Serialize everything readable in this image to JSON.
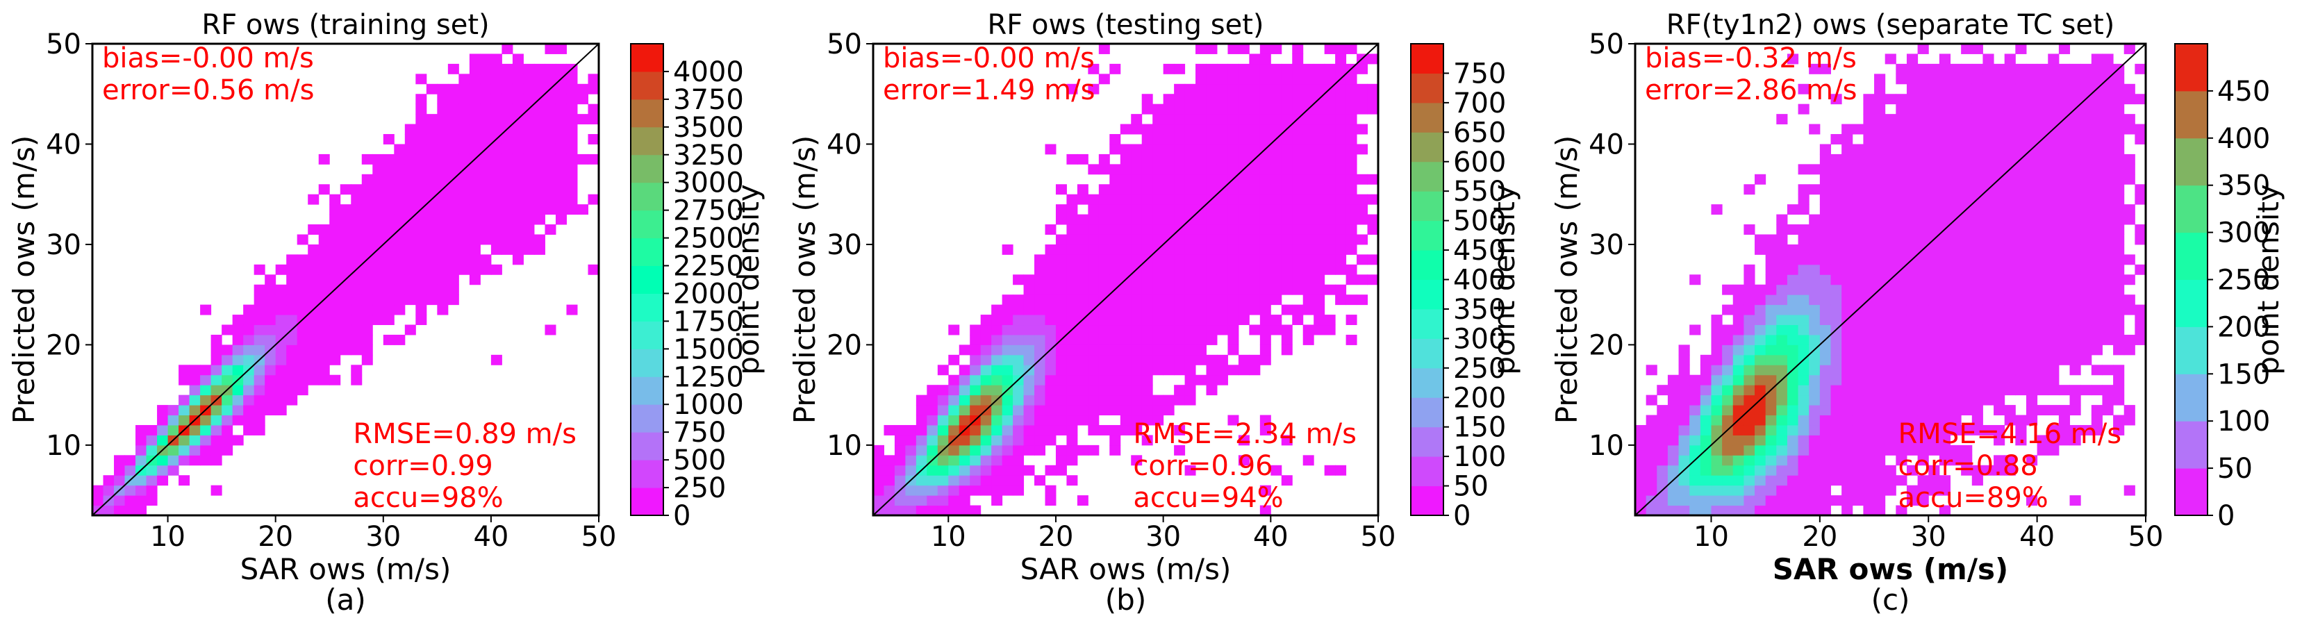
{
  "chart_data": [
    {
      "type": "heatmap",
      "panel": "(a)",
      "title": "RF ows (training set)",
      "xlabel": "SAR ows (m/s)",
      "ylabel": "Predicted ows (m/s)",
      "xlabel_bold": false,
      "xlim": [
        3,
        50
      ],
      "ylim": [
        3,
        50
      ],
      "xticks": [
        "10",
        "20",
        "30",
        "40",
        "50"
      ],
      "yticks": [
        "10",
        "20",
        "30",
        "40",
        "50"
      ],
      "stats_top": [
        "bias=-0.00 m/s",
        "error=0.56 m/s"
      ],
      "stats_bottom": [
        "RMSE=0.89 m/s",
        "corr=0.99",
        "accu=98%"
      ],
      "colorbar": {
        "label": "point density",
        "max": 4250,
        "ticks": [
          "0",
          "250",
          "500",
          "750",
          "1000",
          "1250",
          "1500",
          "1750",
          "2000",
          "2250",
          "2500",
          "2750",
          "3000",
          "3250",
          "3500",
          "3750",
          "4000"
        ],
        "tick_values": [
          0,
          250,
          500,
          750,
          1000,
          1250,
          1500,
          1750,
          2000,
          2250,
          2500,
          2750,
          3000,
          3250,
          3500,
          3750,
          4000
        ]
      },
      "density_model": {
        "spread_base": 0.55,
        "spread_slope": 0.085,
        "bias": 0.0,
        "peak_center": 12.5,
        "peak_width": 5.0,
        "peak_value": 4200,
        "tail_decay": 0.045,
        "extent": 3.4,
        "scatter_prob": 0.035
      }
    },
    {
      "type": "heatmap",
      "panel": "(b)",
      "title": "RF ows (testing set)",
      "xlabel": "SAR ows (m/s)",
      "ylabel": "Predicted ows (m/s)",
      "xlabel_bold": false,
      "xlim": [
        3,
        50
      ],
      "ylim": [
        3,
        50
      ],
      "xticks": [
        "10",
        "20",
        "30",
        "40",
        "50"
      ],
      "yticks": [
        "10",
        "20",
        "30",
        "40",
        "50"
      ],
      "stats_top": [
        "bias=-0.00 m/s",
        "error=1.49 m/s"
      ],
      "stats_bottom": [
        "RMSE=2.34 m/s",
        "corr=0.96",
        "accu=94%"
      ],
      "colorbar": {
        "label": "point density",
        "max": 800,
        "ticks": [
          "0",
          "50",
          "100",
          "150",
          "200",
          "250",
          "300",
          "350",
          "400",
          "450",
          "500",
          "550",
          "600",
          "650",
          "700",
          "750"
        ],
        "tick_values": [
          0,
          50,
          100,
          150,
          200,
          250,
          300,
          350,
          400,
          450,
          500,
          550,
          600,
          650,
          700,
          750
        ]
      },
      "density_model": {
        "spread_base": 1.2,
        "spread_slope": 0.14,
        "bias": 0.0,
        "peak_center": 12.0,
        "peak_width": 4.5,
        "peak_value": 780,
        "tail_decay": 0.04,
        "extent": 3.2,
        "scatter_prob": 0.06
      }
    },
    {
      "type": "heatmap",
      "panel": "(c)",
      "title": "RF(ty1n2) ows (separate TC set)",
      "xlabel": "SAR ows (m/s)",
      "ylabel": "Predicted ows (m/s)",
      "xlabel_bold": true,
      "xlim": [
        3,
        50
      ],
      "ylim": [
        3,
        50
      ],
      "xticks": [
        "10",
        "20",
        "30",
        "40",
        "50"
      ],
      "yticks": [
        "10",
        "20",
        "30",
        "40",
        "50"
      ],
      "stats_top": [
        "bias=-0.32 m/s",
        "error=2.86 m/s"
      ],
      "stats_bottom": [
        "RMSE=4.16 m/s",
        "corr=0.88",
        "accu=89%"
      ],
      "colorbar": {
        "label": "point density",
        "max": 500,
        "ticks": [
          "0",
          "50",
          "100",
          "150",
          "200",
          "250",
          "300",
          "350",
          "400",
          "450"
        ],
        "tick_values": [
          0,
          50,
          100,
          150,
          200,
          250,
          300,
          350,
          400,
          450
        ]
      },
      "density_model": {
        "spread_base": 2.4,
        "spread_slope": 0.2,
        "bias": 0.4,
        "peak_center": 13.5,
        "peak_width": 5.5,
        "peak_value": 480,
        "tail_decay": 0.03,
        "extent": 3.0,
        "scatter_prob": 0.08
      }
    }
  ]
}
